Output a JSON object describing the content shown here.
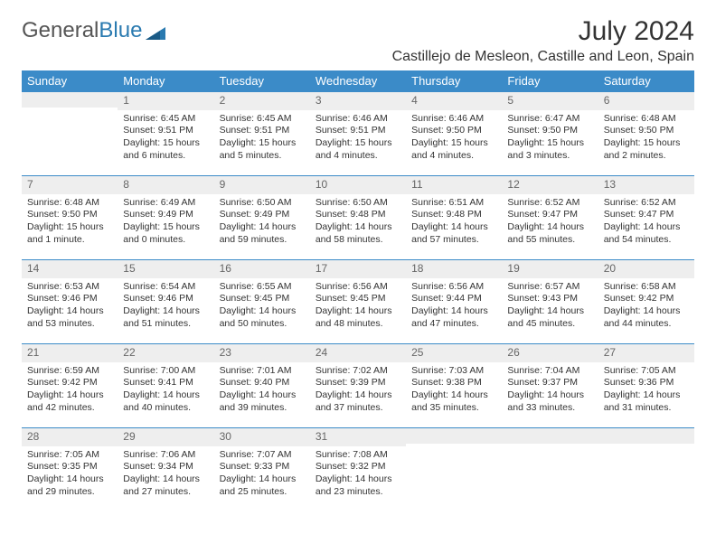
{
  "logo": {
    "text1": "General",
    "text2": "Blue"
  },
  "title": "July 2024",
  "location": "Castillejo de Mesleon, Castille and Leon, Spain",
  "colors": {
    "header_bg": "#3b8bc8",
    "header_text": "#ffffff",
    "daynum_bg": "#eeeeee",
    "daynum_border": "#3b8bc8",
    "body_text": "#333333",
    "logo_gray": "#555555",
    "logo_blue": "#2a7ab0"
  },
  "weekdays": [
    "Sunday",
    "Monday",
    "Tuesday",
    "Wednesday",
    "Thursday",
    "Friday",
    "Saturday"
  ],
  "weeks": [
    [
      {
        "day": "",
        "lines": []
      },
      {
        "day": "1",
        "lines": [
          "Sunrise: 6:45 AM",
          "Sunset: 9:51 PM",
          "Daylight: 15 hours and 6 minutes."
        ]
      },
      {
        "day": "2",
        "lines": [
          "Sunrise: 6:45 AM",
          "Sunset: 9:51 PM",
          "Daylight: 15 hours and 5 minutes."
        ]
      },
      {
        "day": "3",
        "lines": [
          "Sunrise: 6:46 AM",
          "Sunset: 9:51 PM",
          "Daylight: 15 hours and 4 minutes."
        ]
      },
      {
        "day": "4",
        "lines": [
          "Sunrise: 6:46 AM",
          "Sunset: 9:50 PM",
          "Daylight: 15 hours and 4 minutes."
        ]
      },
      {
        "day": "5",
        "lines": [
          "Sunrise: 6:47 AM",
          "Sunset: 9:50 PM",
          "Daylight: 15 hours and 3 minutes."
        ]
      },
      {
        "day": "6",
        "lines": [
          "Sunrise: 6:48 AM",
          "Sunset: 9:50 PM",
          "Daylight: 15 hours and 2 minutes."
        ]
      }
    ],
    [
      {
        "day": "7",
        "lines": [
          "Sunrise: 6:48 AM",
          "Sunset: 9:50 PM",
          "Daylight: 15 hours and 1 minute."
        ]
      },
      {
        "day": "8",
        "lines": [
          "Sunrise: 6:49 AM",
          "Sunset: 9:49 PM",
          "Daylight: 15 hours and 0 minutes."
        ]
      },
      {
        "day": "9",
        "lines": [
          "Sunrise: 6:50 AM",
          "Sunset: 9:49 PM",
          "Daylight: 14 hours and 59 minutes."
        ]
      },
      {
        "day": "10",
        "lines": [
          "Sunrise: 6:50 AM",
          "Sunset: 9:48 PM",
          "Daylight: 14 hours and 58 minutes."
        ]
      },
      {
        "day": "11",
        "lines": [
          "Sunrise: 6:51 AM",
          "Sunset: 9:48 PM",
          "Daylight: 14 hours and 57 minutes."
        ]
      },
      {
        "day": "12",
        "lines": [
          "Sunrise: 6:52 AM",
          "Sunset: 9:47 PM",
          "Daylight: 14 hours and 55 minutes."
        ]
      },
      {
        "day": "13",
        "lines": [
          "Sunrise: 6:52 AM",
          "Sunset: 9:47 PM",
          "Daylight: 14 hours and 54 minutes."
        ]
      }
    ],
    [
      {
        "day": "14",
        "lines": [
          "Sunrise: 6:53 AM",
          "Sunset: 9:46 PM",
          "Daylight: 14 hours and 53 minutes."
        ]
      },
      {
        "day": "15",
        "lines": [
          "Sunrise: 6:54 AM",
          "Sunset: 9:46 PM",
          "Daylight: 14 hours and 51 minutes."
        ]
      },
      {
        "day": "16",
        "lines": [
          "Sunrise: 6:55 AM",
          "Sunset: 9:45 PM",
          "Daylight: 14 hours and 50 minutes."
        ]
      },
      {
        "day": "17",
        "lines": [
          "Sunrise: 6:56 AM",
          "Sunset: 9:45 PM",
          "Daylight: 14 hours and 48 minutes."
        ]
      },
      {
        "day": "18",
        "lines": [
          "Sunrise: 6:56 AM",
          "Sunset: 9:44 PM",
          "Daylight: 14 hours and 47 minutes."
        ]
      },
      {
        "day": "19",
        "lines": [
          "Sunrise: 6:57 AM",
          "Sunset: 9:43 PM",
          "Daylight: 14 hours and 45 minutes."
        ]
      },
      {
        "day": "20",
        "lines": [
          "Sunrise: 6:58 AM",
          "Sunset: 9:42 PM",
          "Daylight: 14 hours and 44 minutes."
        ]
      }
    ],
    [
      {
        "day": "21",
        "lines": [
          "Sunrise: 6:59 AM",
          "Sunset: 9:42 PM",
          "Daylight: 14 hours and 42 minutes."
        ]
      },
      {
        "day": "22",
        "lines": [
          "Sunrise: 7:00 AM",
          "Sunset: 9:41 PM",
          "Daylight: 14 hours and 40 minutes."
        ]
      },
      {
        "day": "23",
        "lines": [
          "Sunrise: 7:01 AM",
          "Sunset: 9:40 PM",
          "Daylight: 14 hours and 39 minutes."
        ]
      },
      {
        "day": "24",
        "lines": [
          "Sunrise: 7:02 AM",
          "Sunset: 9:39 PM",
          "Daylight: 14 hours and 37 minutes."
        ]
      },
      {
        "day": "25",
        "lines": [
          "Sunrise: 7:03 AM",
          "Sunset: 9:38 PM",
          "Daylight: 14 hours and 35 minutes."
        ]
      },
      {
        "day": "26",
        "lines": [
          "Sunrise: 7:04 AM",
          "Sunset: 9:37 PM",
          "Daylight: 14 hours and 33 minutes."
        ]
      },
      {
        "day": "27",
        "lines": [
          "Sunrise: 7:05 AM",
          "Sunset: 9:36 PM",
          "Daylight: 14 hours and 31 minutes."
        ]
      }
    ],
    [
      {
        "day": "28",
        "lines": [
          "Sunrise: 7:05 AM",
          "Sunset: 9:35 PM",
          "Daylight: 14 hours and 29 minutes."
        ]
      },
      {
        "day": "29",
        "lines": [
          "Sunrise: 7:06 AM",
          "Sunset: 9:34 PM",
          "Daylight: 14 hours and 27 minutes."
        ]
      },
      {
        "day": "30",
        "lines": [
          "Sunrise: 7:07 AM",
          "Sunset: 9:33 PM",
          "Daylight: 14 hours and 25 minutes."
        ]
      },
      {
        "day": "31",
        "lines": [
          "Sunrise: 7:08 AM",
          "Sunset: 9:32 PM",
          "Daylight: 14 hours and 23 minutes."
        ]
      },
      {
        "day": "",
        "lines": []
      },
      {
        "day": "",
        "lines": []
      },
      {
        "day": "",
        "lines": []
      }
    ]
  ]
}
